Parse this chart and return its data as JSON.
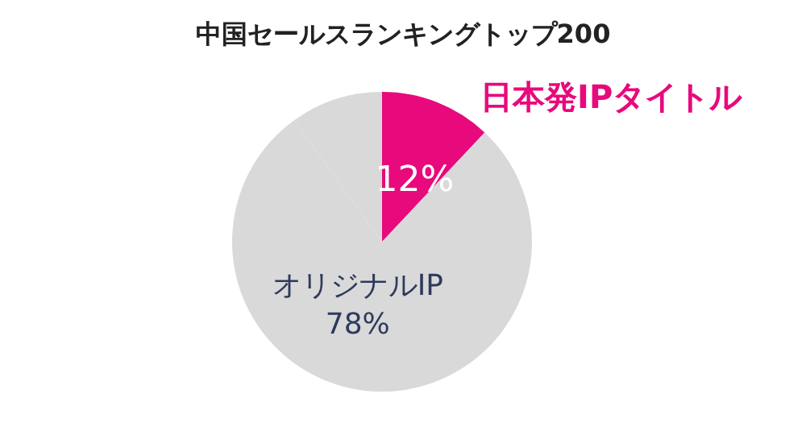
{
  "chart_data": {
    "type": "pie",
    "title": "中国セールスランキングトップ200",
    "categories": [
      "日本発IPタイトル",
      "オリジナルIP",
      null
    ],
    "values": [
      12,
      78,
      10
    ],
    "colors": [
      "#e8097c",
      "#d9d9d9",
      "#d9d9d9"
    ],
    "value_labels": [
      "12%",
      "78%",
      null
    ],
    "legend": false
  }
}
